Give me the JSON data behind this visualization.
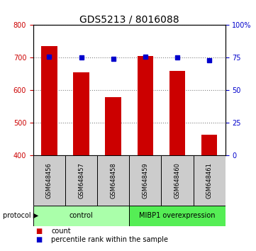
{
  "title": "GDS5213 / 8016088",
  "samples": [
    "GSM648456",
    "GSM648457",
    "GSM648458",
    "GSM648459",
    "GSM648460",
    "GSM648461"
  ],
  "bar_values": [
    735,
    655,
    580,
    705,
    660,
    463
  ],
  "percentile_values": [
    76,
    75,
    74,
    76,
    75,
    73
  ],
  "bar_color": "#cc0000",
  "marker_color": "#0000cc",
  "ylim_left": [
    400,
    800
  ],
  "ylim_right": [
    0,
    100
  ],
  "yticks_left": [
    400,
    500,
    600,
    700,
    800
  ],
  "yticks_right": [
    0,
    25,
    50,
    75,
    100
  ],
  "ytick_labels_right": [
    "0",
    "25",
    "50",
    "75",
    "100%"
  ],
  "control_label": "control",
  "overexpression_label": "MIBP1 overexpression",
  "protocol_label": "protocol",
  "legend_count": "count",
  "legend_percentile": "percentile rank within the sample",
  "control_color": "#aaffaa",
  "overexpression_color": "#55ee55",
  "sample_box_color": "#cccccc",
  "bar_width": 0.5,
  "title_fontsize": 10,
  "tick_fontsize": 7,
  "sample_fontsize": 6,
  "protocol_fontsize": 7,
  "legend_fontsize": 7
}
